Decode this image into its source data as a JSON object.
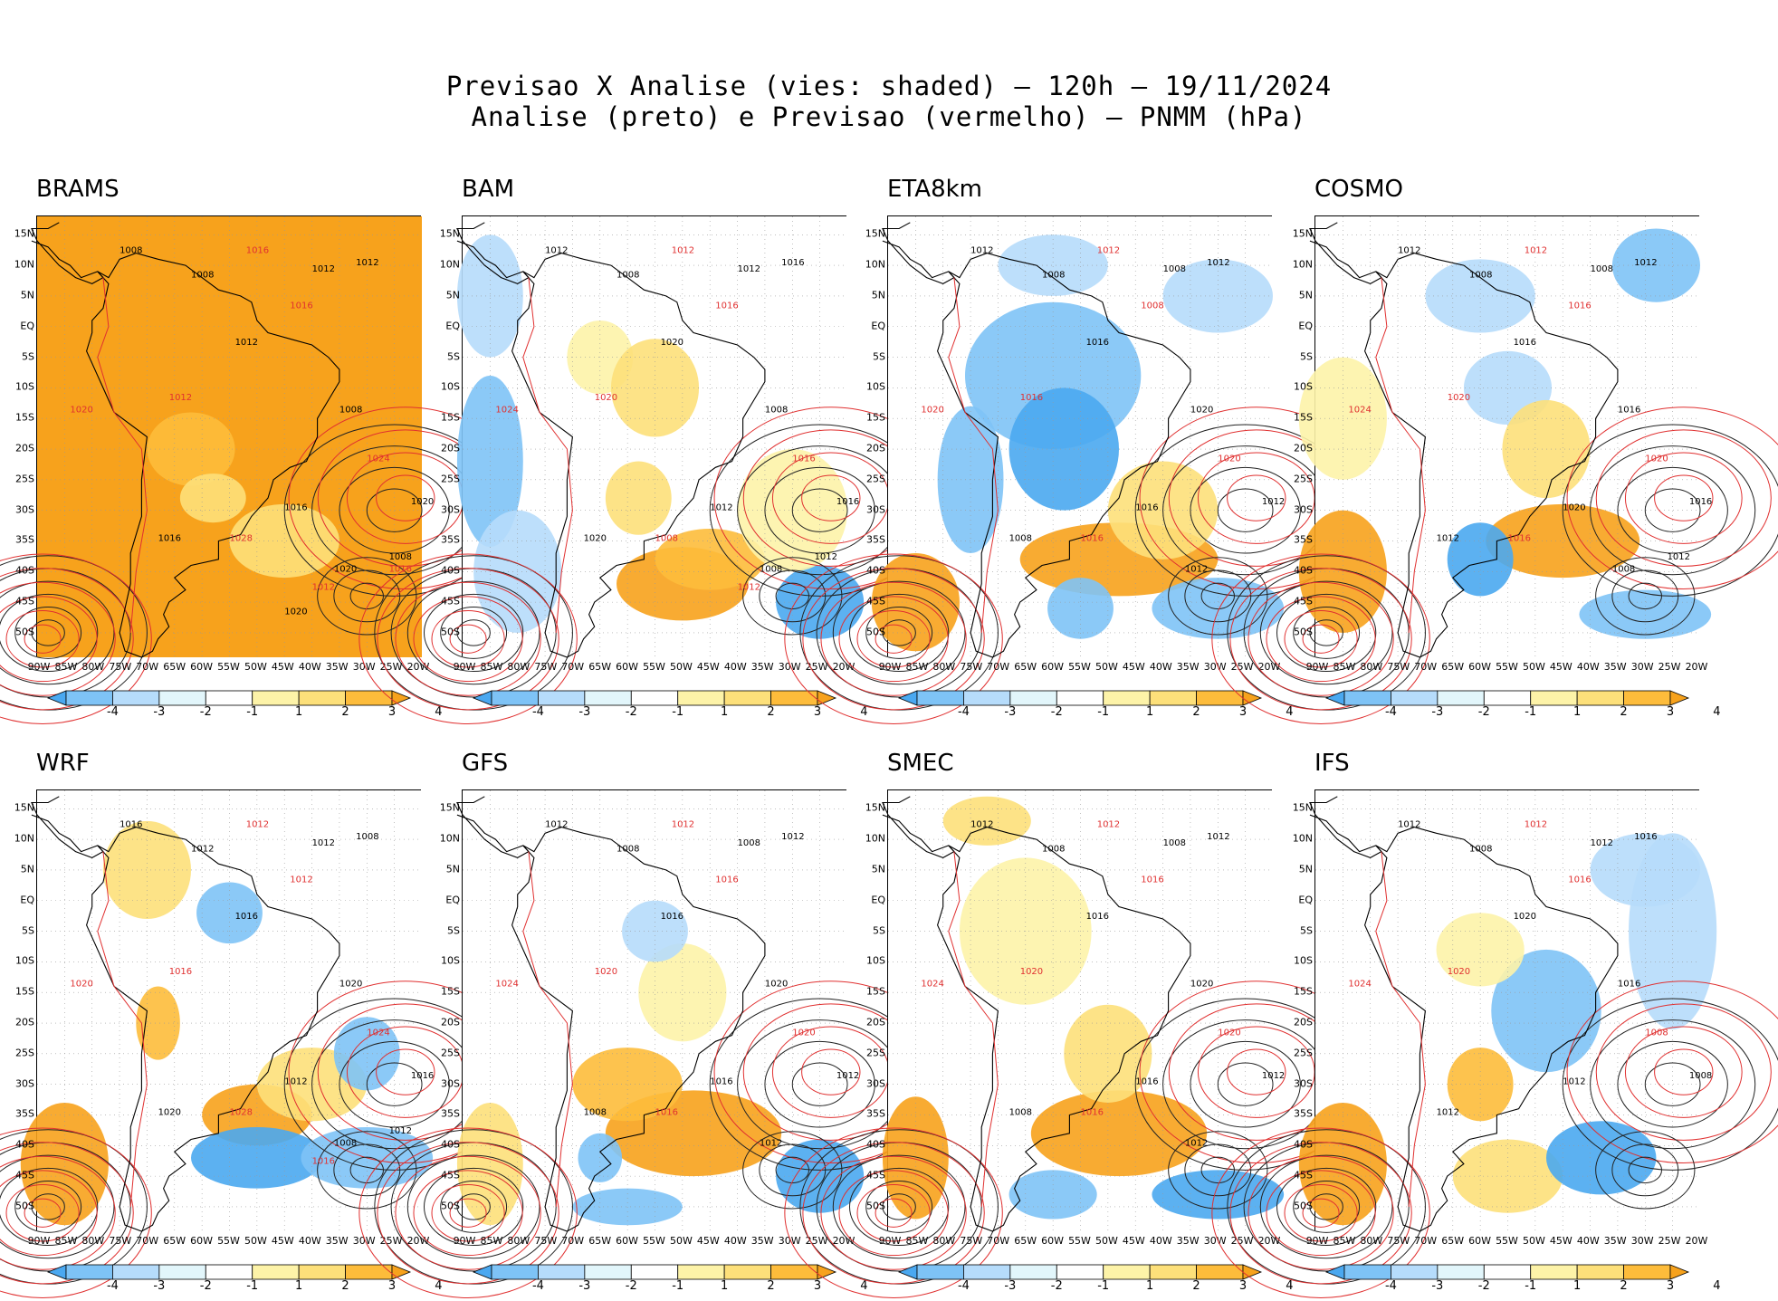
{
  "title": {
    "line1": "Previsao X Analise (vies: shaded) – 120h – 19/11/2024",
    "line2": "Analise (preto) e Previsao (vermelho) – PNMM (hPa)"
  },
  "lat_ticks": [
    "15N",
    "10N",
    "5N",
    "EQ",
    "5S",
    "10S",
    "15S",
    "20S",
    "25S",
    "30S",
    "35S",
    "40S",
    "45S",
    "50S"
  ],
  "lon_ticks": [
    "90W",
    "85W",
    "80W",
    "75W",
    "70W",
    "65W",
    "60W",
    "55W",
    "50W",
    "45W",
    "40W",
    "35W",
    "30W",
    "25W",
    "20W"
  ],
  "colorbar": {
    "labels": [
      "-4",
      "-3",
      "-2",
      "-1",
      "1",
      "2",
      "3",
      "4"
    ],
    "colors": [
      "#4aa8f0",
      "#7ec3f6",
      "#b6dcfb",
      "#e2f6fb",
      "#ffffff",
      "#fdf3a8",
      "#fde07a",
      "#fdbc3b",
      "#f7a21c"
    ]
  },
  "panels": [
    {
      "name": "BRAMS",
      "isobars_black": [
        "1008",
        "1008",
        "1012",
        "1012",
        "1012",
        "1008",
        "1016",
        "1020",
        "1016",
        "1020",
        "1008",
        "1020"
      ],
      "isobars_red": [
        "1016",
        "1016",
        "1012",
        "1020",
        "1024",
        "1028",
        "1012",
        "1016"
      ]
    },
    {
      "name": "BAM",
      "isobars_black": [
        "1012",
        "1008",
        "1012",
        "1016",
        "1020",
        "1008",
        "1012",
        "1016",
        "1020",
        "1008",
        "1012"
      ],
      "isobars_red": [
        "1012",
        "1016",
        "1020",
        "1024",
        "1016",
        "1008",
        "1012"
      ]
    },
    {
      "name": "ETA8km",
      "isobars_black": [
        "1012",
        "1008",
        "1008",
        "1012",
        "1016",
        "1020",
        "1016",
        "1012",
        "1008",
        "1012"
      ],
      "isobars_red": [
        "1012",
        "1008",
        "1016",
        "1020",
        "1020",
        "1016"
      ]
    },
    {
      "name": "COSMO",
      "isobars_black": [
        "1012",
        "1008",
        "1008",
        "1012",
        "1016",
        "1016",
        "1020",
        "1016",
        "1012",
        "1008",
        "1012"
      ],
      "isobars_red": [
        "1012",
        "1016",
        "1020",
        "1024",
        "1020",
        "1016"
      ]
    },
    {
      "name": "WRF",
      "isobars_black": [
        "1016",
        "1012",
        "1012",
        "1008",
        "1016",
        "1020",
        "1012",
        "1016",
        "1020",
        "1008",
        "1012"
      ],
      "isobars_red": [
        "1012",
        "1012",
        "1016",
        "1020",
        "1024",
        "1028",
        "1016"
      ]
    },
    {
      "name": "GFS",
      "isobars_black": [
        "1012",
        "1008",
        "1008",
        "1012",
        "1016",
        "1020",
        "1016",
        "1012",
        "1008",
        "1012"
      ],
      "isobars_red": [
        "1012",
        "1016",
        "1020",
        "1024",
        "1020",
        "1016"
      ]
    },
    {
      "name": "SMEC",
      "isobars_black": [
        "1012",
        "1008",
        "1008",
        "1012",
        "1016",
        "1020",
        "1016",
        "1012",
        "1008",
        "1012"
      ],
      "isobars_red": [
        "1012",
        "1016",
        "1020",
        "1024",
        "1020",
        "1016"
      ]
    },
    {
      "name": "IFS",
      "isobars_black": [
        "1012",
        "1008",
        "1012",
        "1016",
        "1020",
        "1016",
        "1012",
        "1008",
        "1012"
      ],
      "isobars_red": [
        "1012",
        "1016",
        "1020",
        "1024",
        "1008"
      ]
    }
  ]
}
